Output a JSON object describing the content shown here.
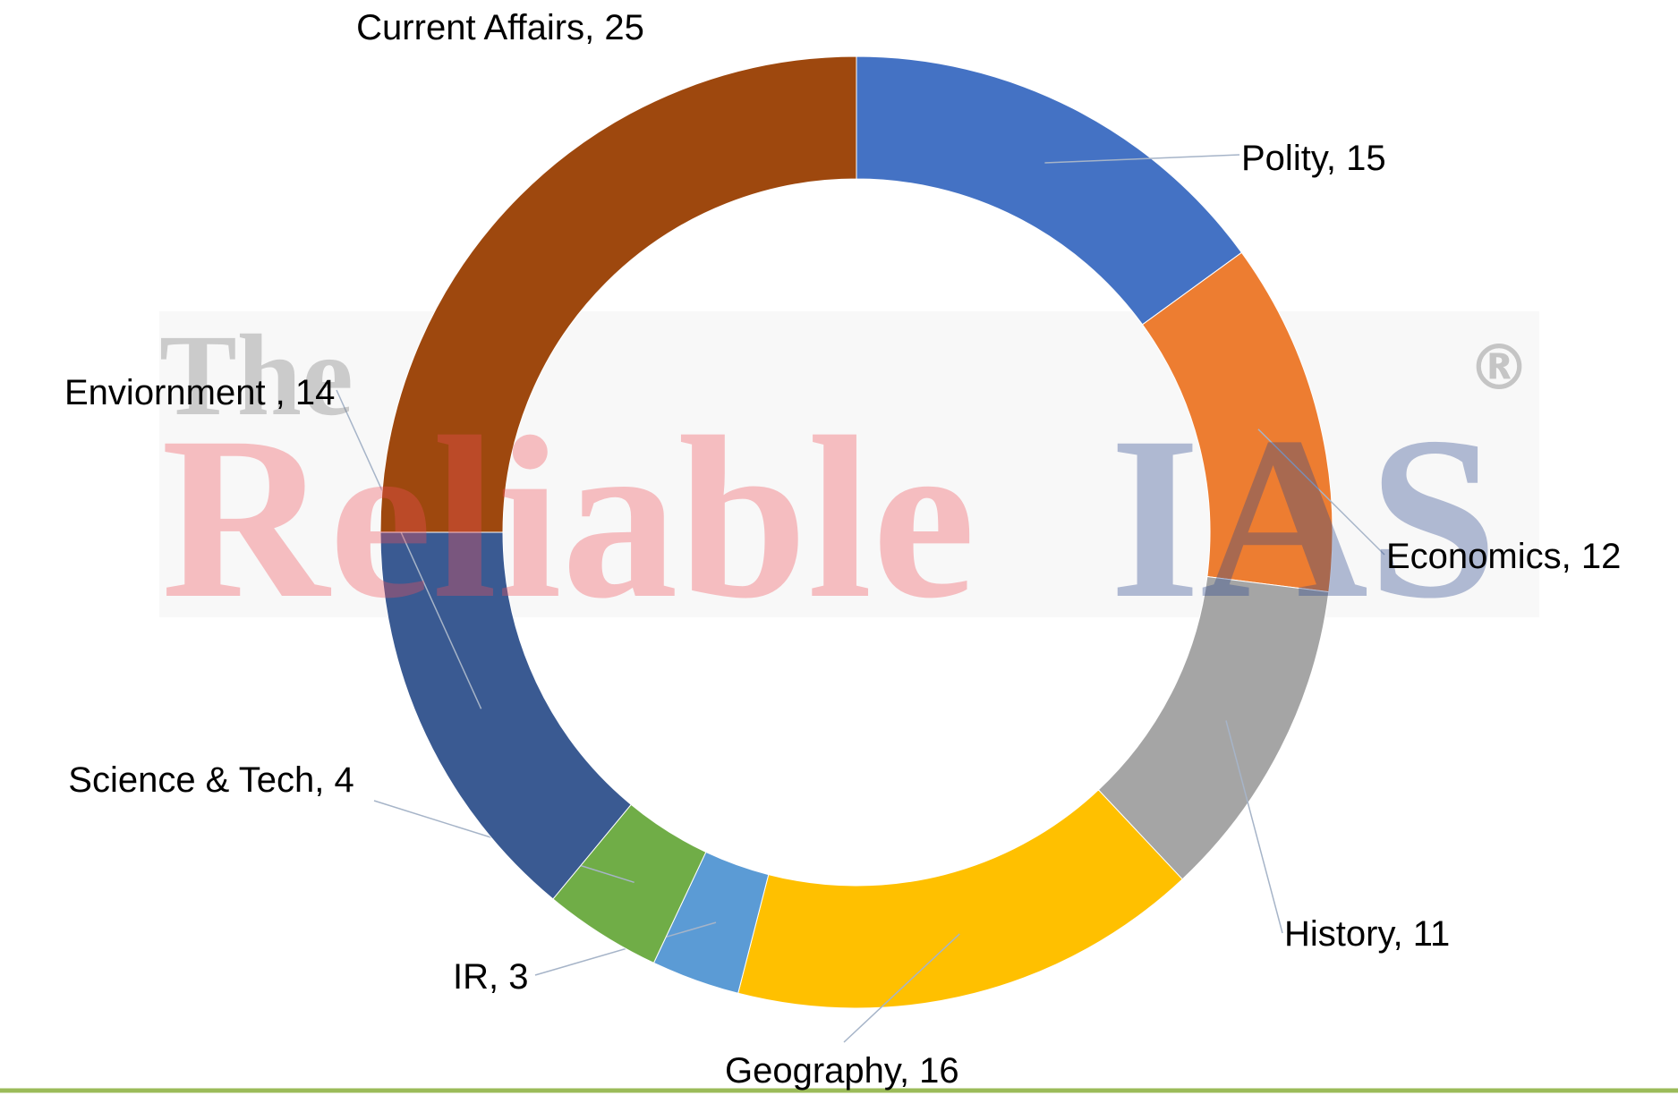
{
  "chart_data": {
    "type": "donut",
    "values": [
      15,
      12,
      11,
      16,
      3,
      4,
      14,
      25
    ],
    "value_labels": [
      "Polity, 15",
      "Economics, 12",
      "History, 11",
      "Geography, 16",
      "IR, 3",
      "Science & Tech, 4",
      "Enviornment , 14",
      "Current Affairs, 25"
    ],
    "colors": [
      "#4472c4",
      "#ed7d31",
      "#a5a5a5",
      "#ffc000",
      "#5b9bd5",
      "#70ad47",
      "#3a5a92",
      "#9e480e"
    ]
  },
  "watermark": {
    "small": "The",
    "main": "Reliable",
    "accent": "IAS",
    "mark": "®"
  }
}
